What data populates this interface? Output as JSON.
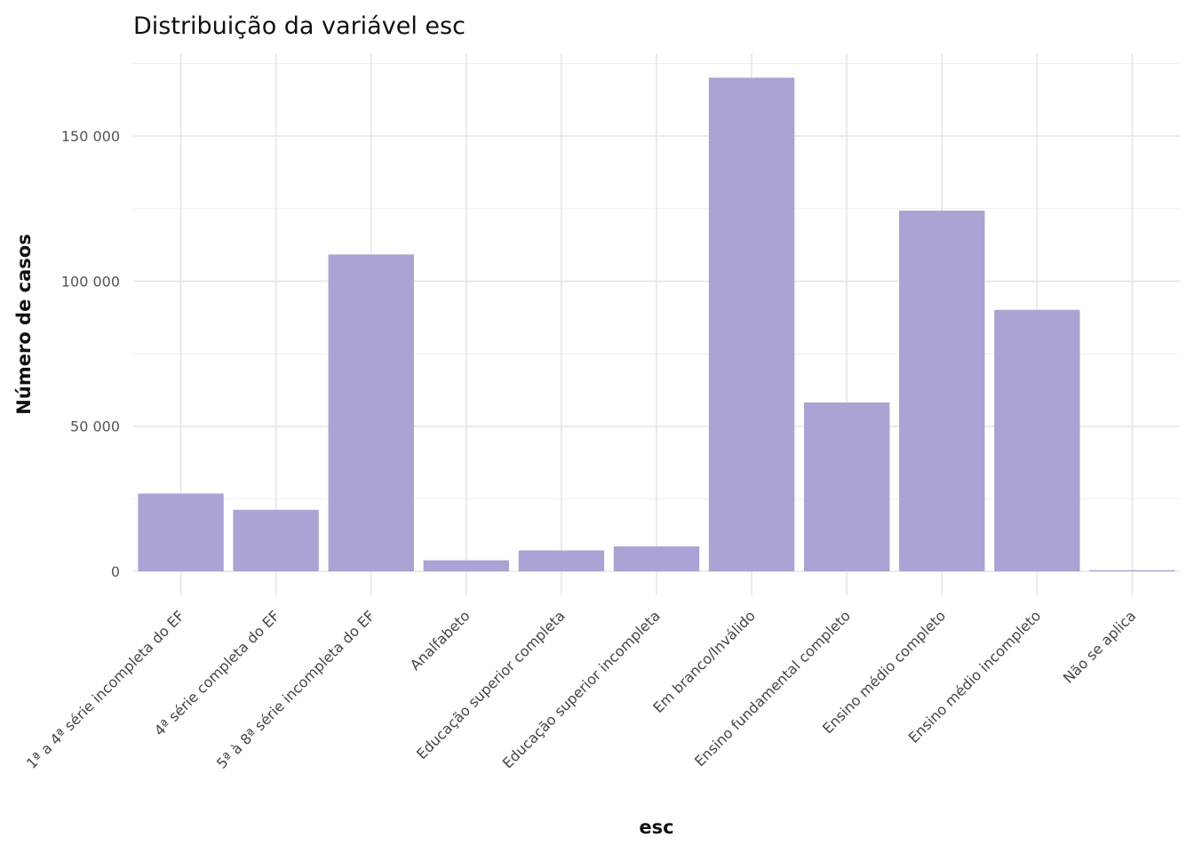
{
  "chart_data": {
    "type": "bar",
    "title": "Distribuição da variável  esc",
    "xlabel": "esc",
    "ylabel": "Número de casos",
    "categories": [
      "1ª a 4ª série incompleta do EF",
      "4ª série completa do EF",
      "5ª à 8ª série incompleta do EF",
      "Analfabeto",
      "Educação superior completa",
      "Educação superior incompleta",
      "Em branco/Inválido",
      "Ensino fundamental completo",
      "Ensino médio completo",
      "Ensino médio incompleto",
      "Não se aplica"
    ],
    "values": [
      26800,
      21200,
      109200,
      3800,
      7200,
      8600,
      170100,
      58200,
      124300,
      90100,
      400
    ],
    "ylim": [
      -8000,
      178000
    ],
    "yticks": [
      0,
      50000,
      100000,
      150000
    ],
    "ytick_labels": [
      "0",
      "50 000",
      "100 000",
      "150 000"
    ],
    "grid": true,
    "legend": "none",
    "bar_color": "#aba3d3"
  }
}
